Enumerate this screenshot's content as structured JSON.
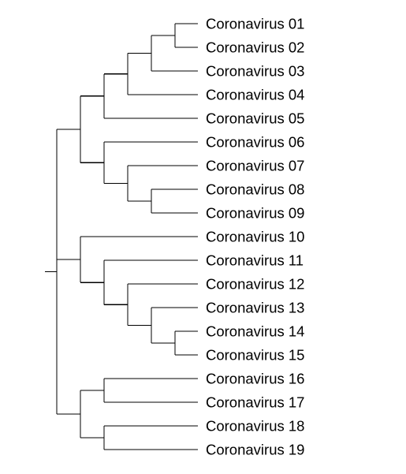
{
  "tree": {
    "line_color": "#000000",
    "leaves": [
      "Coronavirus 01",
      "Coronavirus 02",
      "Coronavirus 03",
      "Coronavirus 04",
      "Coronavirus 05",
      "Coronavirus 06",
      "Coronavirus 07",
      "Coronavirus 08",
      "Coronavirus 09",
      "Coronavirus 10",
      "Coronavirus 11",
      "Coronavirus 12",
      "Coronavirus 13",
      "Coronavirus 14",
      "Coronavirus 15",
      "Coronavirus 16",
      "Coronavirus 17",
      "Coronavirus 18",
      "Coronavirus 19"
    ],
    "topology": [
      [
        [
          [
            [
              [
                "0",
                "1"
              ],
              "2"
            ],
            "3"
          ],
          "4"
        ],
        [
          "5",
          [
            "6",
            [
              "7",
              "8"
            ]
          ]
        ]
      ],
      [
        "9",
        [
          "10",
          [
            "11",
            [
              "12",
              [
                "13",
                "14"
              ]
            ]
          ]
        ]
      ],
      [
        [
          "15",
          "16"
        ],
        [
          "17",
          "18"
        ]
      ]
    ]
  }
}
